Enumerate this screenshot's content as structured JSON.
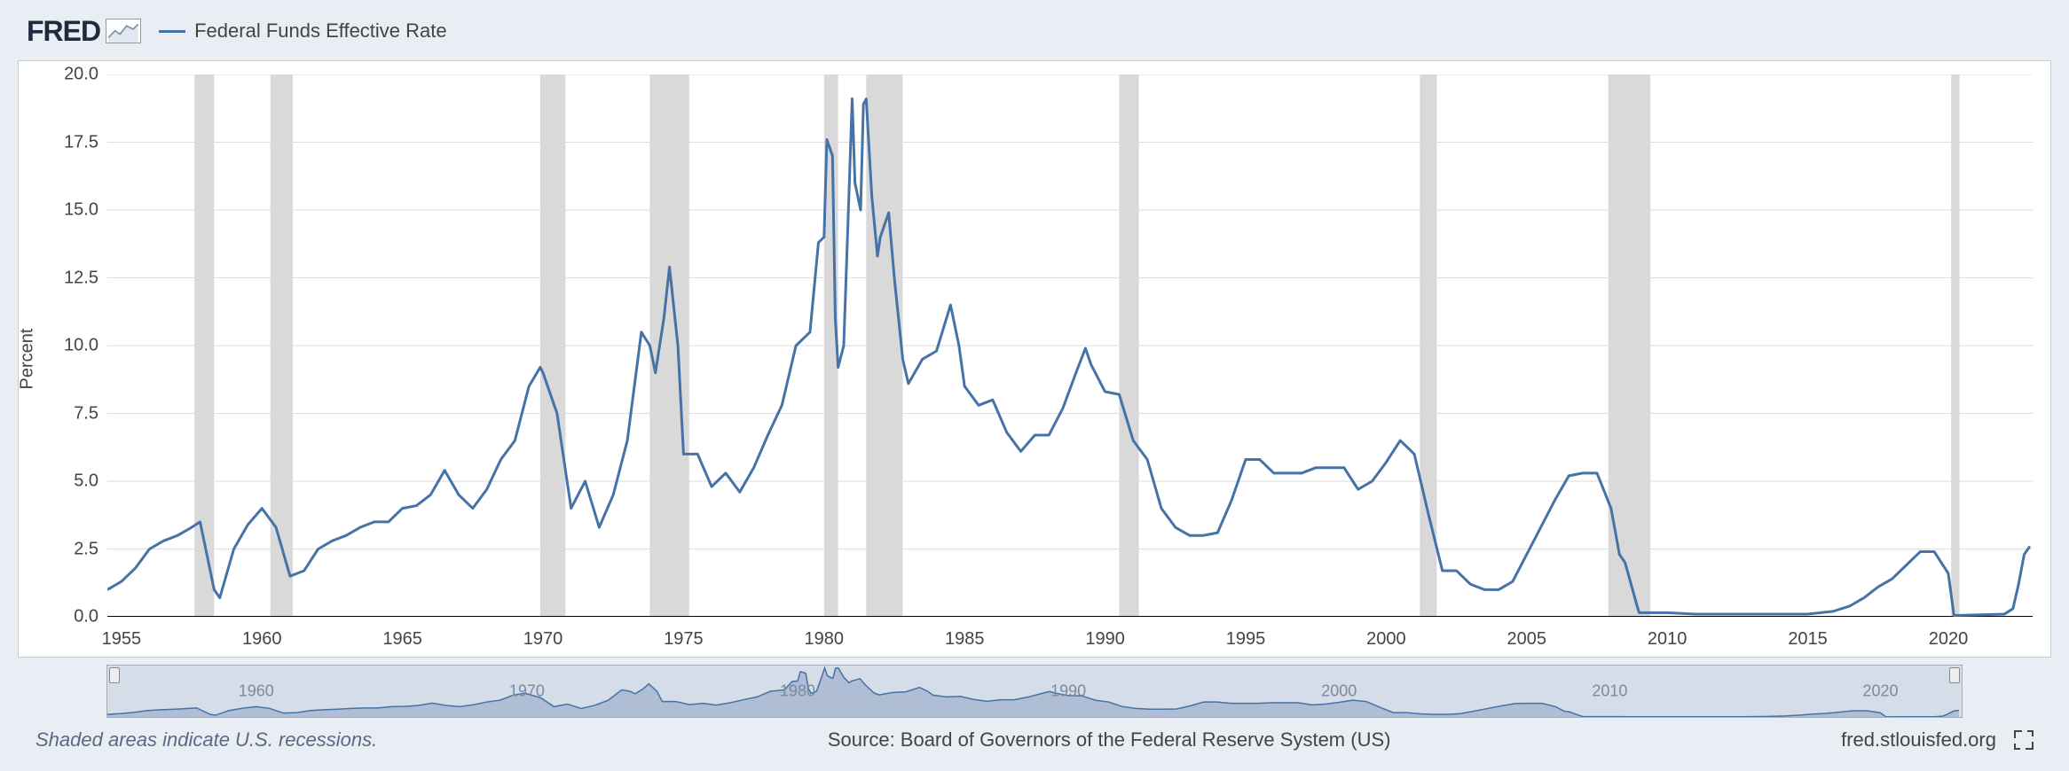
{
  "logo_text": "FRED",
  "legend_label": "Federal Funds Effective Rate",
  "chart": {
    "type": "line",
    "ylabel": "Percent",
    "ylim": [
      0,
      20
    ],
    "ytick_step": 2.5,
    "yticks": [
      0.0,
      2.5,
      5.0,
      7.5,
      10.0,
      12.5,
      15.0,
      17.5,
      20.0
    ],
    "xlim": [
      1954.5,
      2023
    ],
    "xticks": [
      1955,
      1960,
      1965,
      1970,
      1975,
      1980,
      1985,
      1990,
      1995,
      2000,
      2005,
      2010,
      2015,
      2020
    ],
    "line_color": "#4572a7",
    "line_width": 3,
    "grid_color": "#dddddd",
    "background_color": "#ffffff",
    "zero_line_color": "#000000",
    "zero_line_width": 2,
    "recession_color": "#d9d9d9",
    "recessions": [
      [
        1957.6,
        1958.3
      ],
      [
        1960.3,
        1961.1
      ],
      [
        1969.9,
        1970.8
      ],
      [
        1973.8,
        1975.2
      ],
      [
        1980.0,
        1980.5
      ],
      [
        1981.5,
        1982.8
      ],
      [
        1990.5,
        1991.2
      ],
      [
        2001.2,
        2001.8
      ],
      [
        2007.9,
        2009.4
      ],
      [
        2020.1,
        2020.4
      ]
    ],
    "data": [
      [
        1954.5,
        1.0
      ],
      [
        1955.0,
        1.3
      ],
      [
        1955.5,
        1.8
      ],
      [
        1956.0,
        2.5
      ],
      [
        1956.5,
        2.8
      ],
      [
        1957.0,
        3.0
      ],
      [
        1957.5,
        3.3
      ],
      [
        1957.8,
        3.5
      ],
      [
        1958.0,
        2.5
      ],
      [
        1958.3,
        1.0
      ],
      [
        1958.5,
        0.7
      ],
      [
        1959.0,
        2.5
      ],
      [
        1959.5,
        3.4
      ],
      [
        1960.0,
        4.0
      ],
      [
        1960.5,
        3.3
      ],
      [
        1961.0,
        1.5
      ],
      [
        1961.5,
        1.7
      ],
      [
        1962.0,
        2.5
      ],
      [
        1962.5,
        2.8
      ],
      [
        1963.0,
        3.0
      ],
      [
        1963.5,
        3.3
      ],
      [
        1964.0,
        3.5
      ],
      [
        1964.5,
        3.5
      ],
      [
        1965.0,
        4.0
      ],
      [
        1965.5,
        4.1
      ],
      [
        1966.0,
        4.5
      ],
      [
        1966.5,
        5.4
      ],
      [
        1967.0,
        4.5
      ],
      [
        1967.5,
        4.0
      ],
      [
        1968.0,
        4.7
      ],
      [
        1968.5,
        5.8
      ],
      [
        1969.0,
        6.5
      ],
      [
        1969.5,
        8.5
      ],
      [
        1969.9,
        9.2
      ],
      [
        1970.0,
        9.0
      ],
      [
        1970.5,
        7.5
      ],
      [
        1971.0,
        4.0
      ],
      [
        1971.5,
        5.0
      ],
      [
        1972.0,
        3.3
      ],
      [
        1972.5,
        4.5
      ],
      [
        1973.0,
        6.5
      ],
      [
        1973.5,
        10.5
      ],
      [
        1973.8,
        10.0
      ],
      [
        1974.0,
        9.0
      ],
      [
        1974.3,
        11.0
      ],
      [
        1974.5,
        12.9
      ],
      [
        1974.8,
        10.0
      ],
      [
        1975.0,
        6.0
      ],
      [
        1975.5,
        6.0
      ],
      [
        1976.0,
        4.8
      ],
      [
        1976.5,
        5.3
      ],
      [
        1977.0,
        4.6
      ],
      [
        1977.5,
        5.5
      ],
      [
        1978.0,
        6.7
      ],
      [
        1978.5,
        7.8
      ],
      [
        1979.0,
        10.0
      ],
      [
        1979.5,
        10.5
      ],
      [
        1979.8,
        13.8
      ],
      [
        1980.0,
        14.0
      ],
      [
        1980.1,
        17.6
      ],
      [
        1980.3,
        17.0
      ],
      [
        1980.4,
        11.0
      ],
      [
        1980.5,
        9.2
      ],
      [
        1980.7,
        10.0
      ],
      [
        1980.9,
        16.0
      ],
      [
        1981.0,
        19.1
      ],
      [
        1981.1,
        16.0
      ],
      [
        1981.3,
        15.0
      ],
      [
        1981.4,
        18.9
      ],
      [
        1981.5,
        19.1
      ],
      [
        1981.7,
        15.5
      ],
      [
        1981.9,
        13.3
      ],
      [
        1982.0,
        14.0
      ],
      [
        1982.3,
        14.9
      ],
      [
        1982.5,
        12.5
      ],
      [
        1982.8,
        9.5
      ],
      [
        1983.0,
        8.6
      ],
      [
        1983.5,
        9.5
      ],
      [
        1984.0,
        9.8
      ],
      [
        1984.5,
        11.5
      ],
      [
        1984.8,
        10.0
      ],
      [
        1985.0,
        8.5
      ],
      [
        1985.5,
        7.8
      ],
      [
        1986.0,
        8.0
      ],
      [
        1986.5,
        6.8
      ],
      [
        1987.0,
        6.1
      ],
      [
        1987.5,
        6.7
      ],
      [
        1988.0,
        6.7
      ],
      [
        1988.5,
        7.7
      ],
      [
        1989.0,
        9.1
      ],
      [
        1989.3,
        9.9
      ],
      [
        1989.5,
        9.3
      ],
      [
        1990.0,
        8.3
      ],
      [
        1990.5,
        8.2
      ],
      [
        1991.0,
        6.5
      ],
      [
        1991.5,
        5.8
      ],
      [
        1992.0,
        4.0
      ],
      [
        1992.5,
        3.3
      ],
      [
        1993.0,
        3.0
      ],
      [
        1993.5,
        3.0
      ],
      [
        1994.0,
        3.1
      ],
      [
        1994.5,
        4.3
      ],
      [
        1995.0,
        5.8
      ],
      [
        1995.5,
        5.8
      ],
      [
        1996.0,
        5.3
      ],
      [
        1996.5,
        5.3
      ],
      [
        1997.0,
        5.3
      ],
      [
        1997.5,
        5.5
      ],
      [
        1998.0,
        5.5
      ],
      [
        1998.5,
        5.5
      ],
      [
        1999.0,
        4.7
      ],
      [
        1999.5,
        5.0
      ],
      [
        2000.0,
        5.7
      ],
      [
        2000.5,
        6.5
      ],
      [
        2001.0,
        6.0
      ],
      [
        2001.5,
        3.8
      ],
      [
        2002.0,
        1.7
      ],
      [
        2002.5,
        1.7
      ],
      [
        2003.0,
        1.2
      ],
      [
        2003.5,
        1.0
      ],
      [
        2004.0,
        1.0
      ],
      [
        2004.5,
        1.3
      ],
      [
        2005.0,
        2.3
      ],
      [
        2005.5,
        3.3
      ],
      [
        2006.0,
        4.3
      ],
      [
        2006.5,
        5.2
      ],
      [
        2007.0,
        5.3
      ],
      [
        2007.5,
        5.3
      ],
      [
        2008.0,
        4.0
      ],
      [
        2008.3,
        2.3
      ],
      [
        2008.5,
        2.0
      ],
      [
        2008.9,
        0.5
      ],
      [
        2009.0,
        0.15
      ],
      [
        2010.0,
        0.15
      ],
      [
        2011.0,
        0.1
      ],
      [
        2012.0,
        0.1
      ],
      [
        2013.0,
        0.1
      ],
      [
        2014.0,
        0.1
      ],
      [
        2015.0,
        0.1
      ],
      [
        2015.9,
        0.2
      ],
      [
        2016.5,
        0.4
      ],
      [
        2017.0,
        0.7
      ],
      [
        2017.5,
        1.1
      ],
      [
        2018.0,
        1.4
      ],
      [
        2018.5,
        1.9
      ],
      [
        2019.0,
        2.4
      ],
      [
        2019.5,
        2.4
      ],
      [
        2020.0,
        1.6
      ],
      [
        2020.2,
        0.05
      ],
      [
        2021.0,
        0.07
      ],
      [
        2022.0,
        0.1
      ],
      [
        2022.3,
        0.3
      ],
      [
        2022.5,
        1.2
      ],
      [
        2022.7,
        2.3
      ],
      [
        2022.9,
        2.6
      ]
    ]
  },
  "mini": {
    "bg_fill": "#8fa4c4",
    "years": [
      1960,
      1970,
      1980,
      1990,
      2000,
      2010,
      2020
    ]
  },
  "footer": {
    "left": "Shaded areas indicate U.S. recessions.",
    "center": "Source: Board of Governors of the Federal Reserve System (US)",
    "right": "fred.stlouisfed.org"
  }
}
